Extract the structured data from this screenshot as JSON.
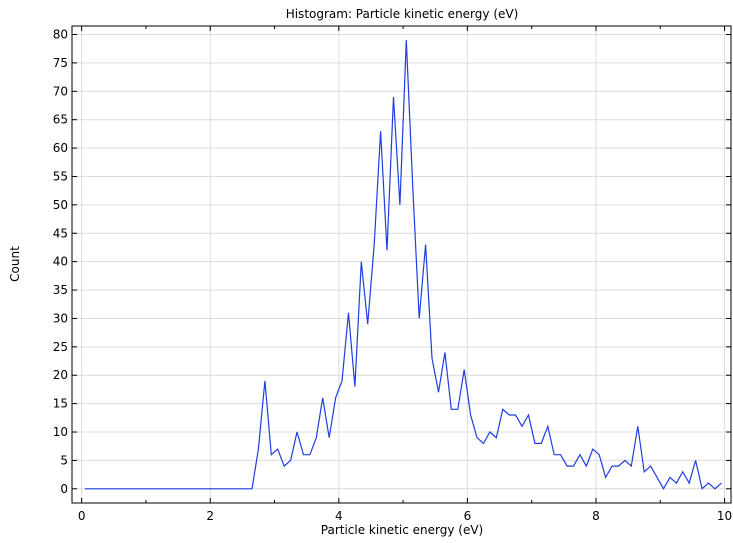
{
  "chart_data": {
    "type": "line",
    "title": "Histogram: Particle kinetic energy (eV)",
    "xlabel": "Particle kinetic energy (eV)",
    "ylabel": "Count",
    "xlim": [
      -0.15,
      10.1
    ],
    "ylim": [
      -2.5,
      81.5
    ],
    "xticks": [
      0,
      2,
      4,
      6,
      8,
      10
    ],
    "yticks": [
      0,
      5,
      10,
      15,
      20,
      25,
      30,
      35,
      40,
      45,
      50,
      55,
      60,
      65,
      70,
      75,
      80
    ],
    "grid": true,
    "line_color": "#1f3de0",
    "series": [
      {
        "x": [
          0.05,
          0.15,
          0.25,
          0.35,
          0.45,
          0.55,
          0.65,
          0.75,
          0.85,
          0.95,
          1.05,
          1.15,
          1.25,
          1.35,
          1.45,
          1.55,
          1.65,
          1.75,
          1.85,
          1.95,
          2.05,
          2.15,
          2.25,
          2.35,
          2.45,
          2.55,
          2.65,
          2.75,
          2.85,
          2.95,
          3.05,
          3.15,
          3.25,
          3.35,
          3.45,
          3.55,
          3.65,
          3.75,
          3.85,
          3.95,
          4.05,
          4.15,
          4.25,
          4.35,
          4.45,
          4.55,
          4.65,
          4.75,
          4.85,
          4.95,
          5.05,
          5.15,
          5.25,
          5.35,
          5.45,
          5.55,
          5.65,
          5.75,
          5.85,
          5.95,
          6.05,
          6.15,
          6.25,
          6.35,
          6.45,
          6.55,
          6.65,
          6.75,
          6.85,
          6.95,
          7.05,
          7.15,
          7.25,
          7.35,
          7.45,
          7.55,
          7.65,
          7.75,
          7.85,
          7.95,
          8.05,
          8.15,
          8.25,
          8.35,
          8.45,
          8.55,
          8.65,
          8.75,
          8.85,
          8.95,
          9.05,
          9.15,
          9.25,
          9.35,
          9.45,
          9.55,
          9.65,
          9.75,
          9.85,
          9.95
        ],
        "y": [
          0,
          0,
          0,
          0,
          0,
          0,
          0,
          0,
          0,
          0,
          0,
          0,
          0,
          0,
          0,
          0,
          0,
          0,
          0,
          0,
          0,
          0,
          0,
          0,
          0,
          0,
          0,
          7,
          19,
          6,
          7,
          4,
          5,
          10,
          6,
          6,
          9,
          16,
          9,
          16,
          19,
          31,
          18,
          40,
          29,
          43,
          63,
          42,
          69,
          50,
          79,
          53,
          30,
          43,
          23,
          17,
          24,
          14,
          14,
          21,
          13,
          9,
          8,
          10,
          9,
          14,
          13,
          13,
          11,
          13,
          8,
          8,
          11,
          6,
          6,
          4,
          4,
          6,
          4,
          7,
          6,
          2,
          4,
          4,
          5,
          4,
          11,
          3,
          4,
          2,
          0,
          2,
          1,
          3,
          1,
          5,
          0,
          1,
          0,
          1
        ]
      }
    ]
  }
}
